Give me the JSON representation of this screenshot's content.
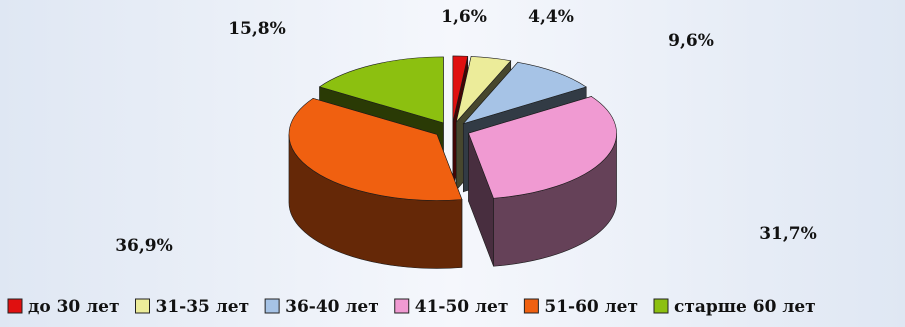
{
  "chart_data": {
    "type": "pie",
    "three_d": true,
    "exploded": true,
    "categories": [
      "до 30 лет",
      "31-35 лет",
      "36-40 лет",
      "41-50 лет",
      "51-60 лет",
      "старше 60 лет"
    ],
    "values": [
      1.6,
      4.4,
      9.6,
      31.7,
      36.9,
      15.8
    ],
    "labels": [
      "1,6%",
      "4,4%",
      "9,6%",
      "31,7%",
      "36,9%",
      "15,8%"
    ],
    "colors": [
      "#e01010",
      "#ecec9a",
      "#a6c3e6",
      "#f09ad2",
      "#f06010",
      "#8cc010"
    ],
    "legend_position": "bottom"
  }
}
